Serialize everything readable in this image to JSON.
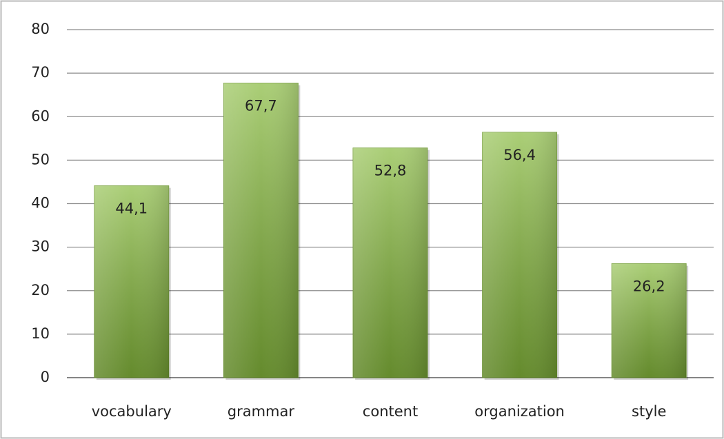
{
  "chart_data": {
    "type": "bar",
    "categories": [
      "vocabulary",
      "grammar",
      "content",
      "organization",
      "style"
    ],
    "values": [
      44.1,
      67.7,
      52.8,
      56.4,
      26.2
    ],
    "value_labels": [
      "44,1",
      "67,7",
      "52,8",
      "56,4",
      "26,2"
    ],
    "color": "#86b93c",
    "ylim": [
      0,
      80
    ],
    "yticks": [
      0,
      10,
      20,
      30,
      40,
      50,
      60,
      70,
      80
    ],
    "grid": true
  }
}
